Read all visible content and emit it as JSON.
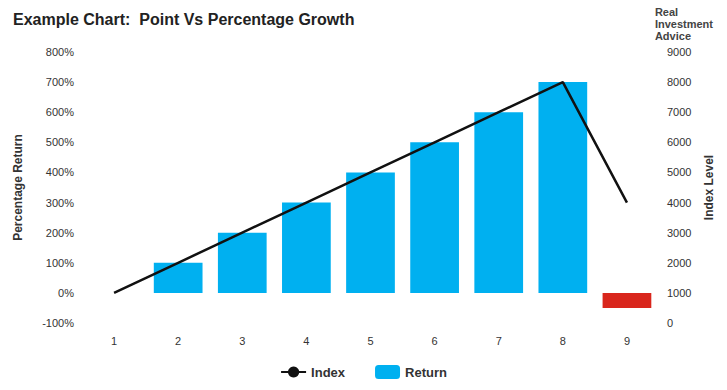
{
  "chart_data": {
    "type": "bar",
    "title": "Example Chart:  Point Vs Percentage Growth",
    "categories": [
      "1",
      "2",
      "3",
      "4",
      "5",
      "6",
      "7",
      "8",
      "9"
    ],
    "series": [
      {
        "name": "Index",
        "type": "line",
        "axis": "y2",
        "color": "#111111",
        "values": [
          1000,
          2000,
          3000,
          4000,
          5000,
          6000,
          7000,
          8000,
          4000
        ]
      },
      {
        "name": "Return",
        "type": "bar",
        "colors": [
          "#00b0f0",
          "#00b0f0",
          "#00b0f0",
          "#00b0f0",
          "#00b0f0",
          "#00b0f0",
          "#00b0f0",
          "#00b0f0",
          "#d9261c"
        ],
        "values": [
          0,
          100,
          200,
          300,
          400,
          500,
          600,
          700,
          -50
        ]
      }
    ],
    "ylabel": "Percentage Return",
    "y2label": "Index Level",
    "ylim": [
      -100,
      800
    ],
    "yticks": [
      {
        "value": -100,
        "label": "-100%"
      },
      {
        "value": 0,
        "label": "0%"
      },
      {
        "value": 100,
        "label": "100%"
      },
      {
        "value": 200,
        "label": "200%"
      },
      {
        "value": 300,
        "label": "300%"
      },
      {
        "value": 400,
        "label": "400%"
      },
      {
        "value": 500,
        "label": "500%"
      },
      {
        "value": 600,
        "label": "600%"
      },
      {
        "value": 700,
        "label": "700%"
      },
      {
        "value": 800,
        "label": "800%"
      }
    ],
    "y2lim": [
      0,
      9000
    ],
    "y2ticks": [
      0,
      1000,
      2000,
      3000,
      4000,
      5000,
      6000,
      7000,
      8000,
      9000
    ],
    "grid": false,
    "legend": "bottom",
    "annotations": [
      "Real",
      "Investment",
      "Advice"
    ]
  }
}
